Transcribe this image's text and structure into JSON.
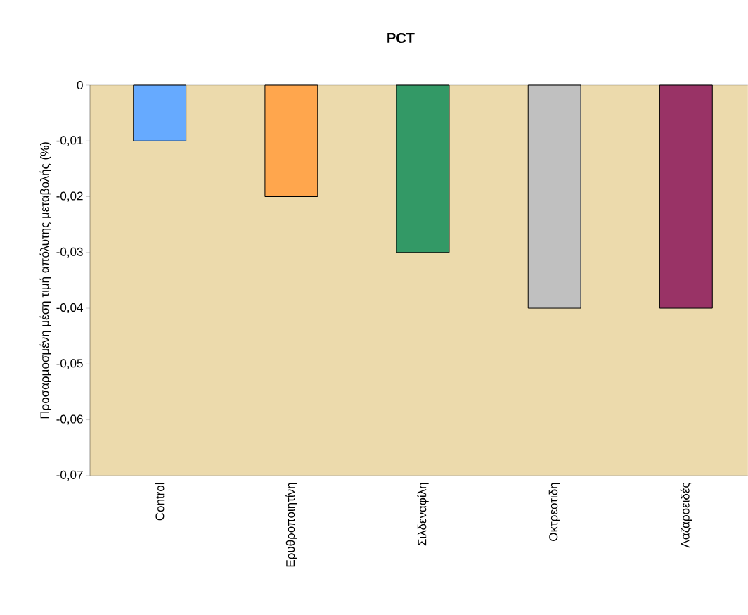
{
  "chart_data": {
    "type": "bar",
    "title": "PCT",
    "ylabel": "Προσαρμοσμένη μέση τιμή απόλυτης μεταβολής (%)",
    "categories": [
      "Control",
      "Ερυθροποιητίνη",
      "Σιλδεναφίλη",
      "Οκτρεοτιδη",
      "Λαζαροειδές"
    ],
    "values": [
      -0.01,
      -0.02,
      -0.03,
      -0.04,
      -0.04
    ],
    "colors": [
      "#66aaff",
      "#ffa64d",
      "#339966",
      "#c0c0c0",
      "#993366"
    ],
    "ylim": [
      -0.07,
      0
    ],
    "yticks": [
      0,
      {
        "value": -0.01,
        "label": "-0,01"
      },
      {
        "value": -0.02,
        "label": "-0,02"
      },
      {
        "value": -0.03,
        "label": "-0,03"
      },
      {
        "value": -0.04,
        "label": "-0,04"
      },
      {
        "value": -0.05,
        "label": "-0,05"
      },
      {
        "value": -0.06,
        "label": "-0,06"
      },
      {
        "value": -0.07,
        "label": "-0,07"
      }
    ],
    "grid": false
  }
}
